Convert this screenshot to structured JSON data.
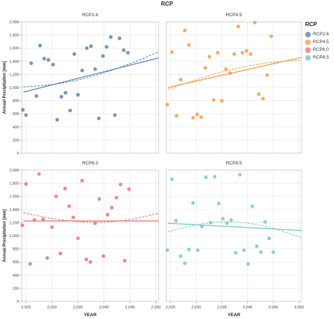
{
  "title": "RCP",
  "legend": {
    "title": "RCP",
    "items": [
      {
        "label": "RCP2.6",
        "color": "#5b84b1"
      },
      {
        "label": "RCP4.5",
        "color": "#f29e4c"
      },
      {
        "label": "RCP6.0",
        "color": "#e87675"
      },
      {
        "label": "RCP8.5",
        "color": "#7fc8c1"
      }
    ]
  },
  "chart_data": [
    {
      "type": "scatter",
      "title": "RCP2.6",
      "color": "#5b84b1",
      "xlabel": "",
      "ylabel": "Annual Precipitation [mm]",
      "xlim": [
        2024.2,
        2050.5
      ],
      "ylim": [
        0,
        2000
      ],
      "xticks": [
        2025,
        2030,
        2035,
        2040,
        2045,
        2050
      ],
      "xtick_labels": [
        "2,025",
        "2,030",
        "2,035",
        "2,040",
        "2,045",
        "2,050"
      ],
      "yticks": [
        0,
        200,
        400,
        600,
        800,
        1000,
        1200,
        1400,
        1600,
        1800,
        2000
      ],
      "ytick_labels": [
        "0",
        "200",
        "400",
        "600",
        "800",
        "1,000",
        "1,200",
        "1,400",
        "1,600",
        "1,800",
        "2,000"
      ],
      "points": [
        [
          2024.4,
          660
        ],
        [
          2025,
          580
        ],
        [
          2026,
          1370
        ],
        [
          2027,
          870
        ],
        [
          2027.7,
          1640
        ],
        [
          2028.5,
          1440
        ],
        [
          2029.3,
          1420
        ],
        [
          2030.2,
          1350
        ],
        [
          2031,
          510
        ],
        [
          2031.8,
          860
        ],
        [
          2032.6,
          920
        ],
        [
          2033.5,
          650
        ],
        [
          2034.3,
          1510
        ],
        [
          2035,
          890
        ],
        [
          2035.8,
          1260
        ],
        [
          2036.7,
          1600
        ],
        [
          2037.5,
          1630
        ],
        [
          2038.3,
          1280
        ],
        [
          2039,
          530
        ],
        [
          2039.8,
          1480
        ],
        [
          2040.5,
          1620
        ],
        [
          2041.3,
          1770
        ],
        [
          2042.1,
          580
        ],
        [
          2043,
          1750
        ],
        [
          2043.8,
          1570
        ],
        [
          2044.6,
          1530
        ]
      ],
      "trend_linear": [
        [
          2024.5,
          930
        ],
        [
          2050.5,
          1450
        ]
      ],
      "trend_quadratic": [
        [
          2024.5,
          1010
        ],
        [
          2030,
          1040
        ],
        [
          2035,
          1110
        ],
        [
          2040,
          1220
        ],
        [
          2045,
          1360
        ],
        [
          2050.5,
          1540
        ]
      ]
    },
    {
      "type": "scatter",
      "title": "RCP4.5",
      "color": "#f29e4c",
      "xlabel": "",
      "ylabel": "",
      "xlim": [
        2024.2,
        2050.5
      ],
      "ylim": [
        0,
        2000
      ],
      "xticks": [
        2025,
        2030,
        2035,
        2040,
        2045,
        2050
      ],
      "xtick_labels": [
        "2,025",
        "2,030",
        "2,035",
        "2,040",
        "2,045",
        "2,050"
      ],
      "yticks": [
        0,
        200,
        400,
        600,
        800,
        1000,
        1200,
        1400,
        1600,
        1800,
        2000
      ],
      "ytick_labels": [],
      "points": [
        [
          2024.4,
          740
        ],
        [
          2025.3,
          1540
        ],
        [
          2026.2,
          570
        ],
        [
          2027,
          1120
        ],
        [
          2027.8,
          1870
        ],
        [
          2028.6,
          1650
        ],
        [
          2029.4,
          540
        ],
        [
          2030.2,
          590
        ],
        [
          2031,
          550
        ],
        [
          2031.8,
          1300
        ],
        [
          2032.6,
          1470
        ],
        [
          2033.4,
          810
        ],
        [
          2034.2,
          1530
        ],
        [
          2035,
          800
        ],
        [
          2035.8,
          1280
        ],
        [
          2036.6,
          1220
        ],
        [
          2037.4,
          1510
        ],
        [
          2038.2,
          1930
        ],
        [
          2039,
          1530
        ],
        [
          2039.8,
          1560
        ],
        [
          2040.6,
          1510
        ],
        [
          2041.4,
          1990
        ],
        [
          2042.2,
          900
        ],
        [
          2043,
          830
        ],
        [
          2043.8,
          1190
        ],
        [
          2044.6,
          1780
        ]
      ],
      "trend_linear": [
        [
          2024.5,
          1000
        ],
        [
          2050.5,
          1460
        ]
      ],
      "trend_quadratic": [
        [
          2024.5,
          970
        ],
        [
          2030,
          1120
        ],
        [
          2035,
          1240
        ],
        [
          2040,
          1330
        ],
        [
          2045,
          1390
        ],
        [
          2050.5,
          1420
        ]
      ]
    },
    {
      "type": "scatter",
      "title": "RCP6.0",
      "color": "#e87675",
      "xlabel": "YEAR",
      "ylabel": "Annual Precipitation [mm]",
      "xlim": [
        2024.2,
        2050.5
      ],
      "ylim": [
        0,
        2000
      ],
      "xticks": [
        2025,
        2030,
        2035,
        2040,
        2045,
        2050
      ],
      "xtick_labels": [
        "2,025",
        "2,030",
        "2,035",
        "2,040",
        "2,045",
        "2,050"
      ],
      "yticks": [
        0,
        200,
        400,
        600,
        800,
        1000,
        1200,
        1400,
        1600,
        1800,
        2000
      ],
      "ytick_labels": [
        "0",
        "200",
        "400",
        "600",
        "800",
        "1,000",
        "1,200",
        "1,400",
        "1,600",
        "1,800",
        "2,000"
      ],
      "points": [
        [
          2024.3,
          1160
        ],
        [
          2025,
          1790
        ],
        [
          2025.8,
          570
        ],
        [
          2026.6,
          1240
        ],
        [
          2027.5,
          1940
        ],
        [
          2028.3,
          1250
        ],
        [
          2029.1,
          660
        ],
        [
          2030,
          1130
        ],
        [
          2030.8,
          1600
        ],
        [
          2031.6,
          730
        ],
        [
          2032.5,
          1720
        ],
        [
          2033.3,
          1450
        ],
        [
          2034.1,
          1280
        ],
        [
          2035,
          960
        ],
        [
          2035.8,
          1840
        ],
        [
          2036.6,
          640
        ],
        [
          2037.4,
          600
        ],
        [
          2038.3,
          1190
        ],
        [
          2039.1,
          1560
        ],
        [
          2039.9,
          690
        ],
        [
          2040.7,
          1320
        ],
        [
          2041.5,
          1430
        ],
        [
          2042.4,
          1580
        ],
        [
          2043.2,
          1780
        ],
        [
          2044,
          620
        ],
        [
          2044.8,
          1710
        ]
      ],
      "trend_linear": [
        [
          2024.5,
          1225
        ],
        [
          2050.5,
          1225
        ]
      ],
      "trend_quadratic": [
        [
          2024.5,
          1350
        ],
        [
          2030,
          1260
        ],
        [
          2035,
          1210
        ],
        [
          2040,
          1200
        ],
        [
          2045,
          1240
        ],
        [
          2050.5,
          1340
        ]
      ]
    },
    {
      "type": "scatter",
      "title": "RCP8.5",
      "color": "#7fc8c1",
      "xlabel": "YEAR",
      "ylabel": "",
      "xlim": [
        2024.2,
        2050.5
      ],
      "ylim": [
        0,
        2000
      ],
      "xticks": [
        2025,
        2030,
        2035,
        2040,
        2045,
        2050
      ],
      "xtick_labels": [
        "2,025",
        "2,030",
        "2,035",
        "2,040",
        "2,045",
        "2,050"
      ],
      "yticks": [
        0,
        200,
        400,
        600,
        800,
        1000,
        1200,
        1400,
        1600,
        1800,
        2000
      ],
      "ytick_labels": [],
      "points": [
        [
          2024.4,
          780
        ],
        [
          2025.3,
          1860
        ],
        [
          2026.1,
          1230
        ],
        [
          2027,
          690
        ],
        [
          2027.8,
          580
        ],
        [
          2028.6,
          790
        ],
        [
          2029.4,
          1500
        ],
        [
          2030.3,
          780
        ],
        [
          2031.1,
          1140
        ],
        [
          2031.9,
          1890
        ],
        [
          2032.8,
          1200
        ],
        [
          2033.6,
          1900
        ],
        [
          2034.4,
          1490
        ],
        [
          2035.2,
          1260
        ],
        [
          2036,
          1190
        ],
        [
          2036.8,
          1240
        ],
        [
          2037.7,
          740
        ],
        [
          2038.5,
          1930
        ],
        [
          2039.3,
          780
        ],
        [
          2040.1,
          570
        ],
        [
          2040.9,
          1450
        ],
        [
          2041.8,
          840
        ],
        [
          2042.6,
          750
        ],
        [
          2043.4,
          1210
        ],
        [
          2044.2,
          960
        ],
        [
          2045,
          750
        ]
      ],
      "trend_linear": [
        [
          2024.5,
          1190
        ],
        [
          2050.5,
          1080
        ]
      ],
      "trend_quadratic": [
        [
          2024.5,
          1060
        ],
        [
          2030,
          1170
        ],
        [
          2035,
          1220
        ],
        [
          2040,
          1200
        ],
        [
          2045,
          1120
        ],
        [
          2050.5,
          970
        ]
      ]
    }
  ]
}
